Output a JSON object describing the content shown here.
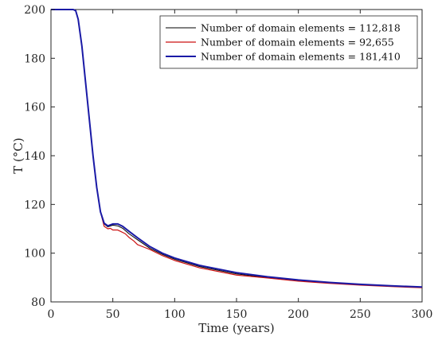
{
  "chart_data": {
    "type": "line",
    "title": "",
    "xlabel": "Time (years)",
    "ylabel": "T (°C)",
    "xlim": [
      0,
      300
    ],
    "ylim": [
      80,
      200
    ],
    "xticks": [
      "0",
      "50",
      "100",
      "150",
      "200",
      "250",
      "300"
    ],
    "yticks": [
      "80",
      "100",
      "120",
      "140",
      "160",
      "180",
      "200"
    ],
    "grid": false,
    "legend_position": "top-right",
    "series": [
      {
        "name": "Number of domain elements = 112,818",
        "color": "#000000",
        "points": [
          [
            0,
            200
          ],
          [
            18,
            200
          ],
          [
            20,
            199.5
          ],
          [
            22,
            196
          ],
          [
            25,
            185
          ],
          [
            28,
            170
          ],
          [
            31,
            155
          ],
          [
            34,
            140
          ],
          [
            37,
            127
          ],
          [
            40,
            117
          ],
          [
            43,
            112
          ],
          [
            46,
            110.8
          ],
          [
            50,
            111.5
          ],
          [
            54,
            111.2
          ],
          [
            58,
            110.2
          ],
          [
            63,
            108
          ],
          [
            70,
            105.5
          ],
          [
            80,
            102
          ],
          [
            90,
            99.5
          ],
          [
            100,
            97.5
          ],
          [
            120,
            94.5
          ],
          [
            150,
            91.5
          ],
          [
            175,
            90
          ],
          [
            200,
            88.8
          ],
          [
            225,
            87.8
          ],
          [
            250,
            87
          ],
          [
            275,
            86.4
          ],
          [
            300,
            85.9
          ]
        ]
      },
      {
        "name": "Number of domain elements = 92,655",
        "color": "#cc1111",
        "points": [
          [
            0,
            200
          ],
          [
            18,
            200
          ],
          [
            20,
            199.5
          ],
          [
            22,
            196
          ],
          [
            25,
            185
          ],
          [
            28,
            170
          ],
          [
            31,
            155
          ],
          [
            34,
            140
          ],
          [
            37,
            127
          ],
          [
            40,
            117
          ],
          [
            43,
            111
          ],
          [
            46,
            110
          ],
          [
            48,
            110.2
          ],
          [
            50,
            109.5
          ],
          [
            54,
            109.5
          ],
          [
            56,
            109
          ],
          [
            60,
            108
          ],
          [
            63,
            106.5
          ],
          [
            67,
            105
          ],
          [
            70,
            103.5
          ],
          [
            75,
            102.5
          ],
          [
            80,
            101.5
          ],
          [
            90,
            99
          ],
          [
            100,
            97
          ],
          [
            120,
            94
          ],
          [
            150,
            91
          ],
          [
            175,
            89.8
          ],
          [
            200,
            88.5
          ],
          [
            225,
            87.6
          ],
          [
            250,
            86.9
          ],
          [
            275,
            86.3
          ],
          [
            300,
            85.8
          ]
        ]
      },
      {
        "name": "Number of domain elements = 181,410",
        "color": "#1a1aa6",
        "points": [
          [
            0,
            200
          ],
          [
            18,
            200
          ],
          [
            20,
            199.5
          ],
          [
            22,
            196
          ],
          [
            25,
            185
          ],
          [
            28,
            170
          ],
          [
            31,
            155
          ],
          [
            34,
            140
          ],
          [
            37,
            127
          ],
          [
            40,
            117
          ],
          [
            43,
            112.3
          ],
          [
            46,
            111.2
          ],
          [
            50,
            112
          ],
          [
            54,
            112
          ],
          [
            58,
            111
          ],
          [
            63,
            109
          ],
          [
            70,
            106.3
          ],
          [
            80,
            102.7
          ],
          [
            90,
            100
          ],
          [
            100,
            98
          ],
          [
            120,
            95
          ],
          [
            150,
            92
          ],
          [
            175,
            90.3
          ],
          [
            200,
            89
          ],
          [
            225,
            88
          ],
          [
            250,
            87.2
          ],
          [
            275,
            86.6
          ],
          [
            300,
            86.1
          ]
        ]
      }
    ]
  }
}
